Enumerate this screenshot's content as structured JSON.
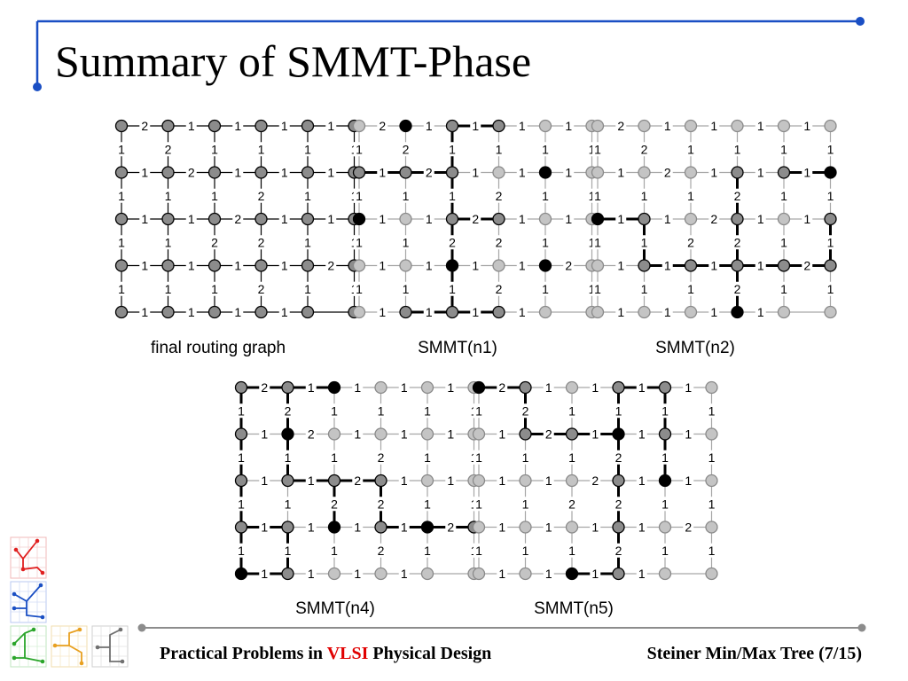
{
  "title": "Summary of SMMT-Phase",
  "colors": {
    "accent_line": "#1a4fc4",
    "footer_line": "#8c8c8c",
    "footer_accent": "#e00000",
    "node_active": "#8c8c8c",
    "node_terminal": "#000000",
    "node_faded": "#c4c4c4",
    "edge_faded": "#a6a6a6"
  },
  "footer": {
    "left_prefix": "Practical Problems in",
    "left_accent": "VLSI",
    "left_suffix": "Physical Design",
    "right": "Steiner Min/Max Tree (7/15)"
  },
  "grid": {
    "h_weights": [
      [
        2,
        1,
        1,
        1,
        1
      ],
      [
        1,
        2,
        1,
        1,
        1
      ],
      [
        1,
        1,
        2,
        1,
        1
      ],
      [
        1,
        1,
        1,
        1,
        2
      ],
      [
        1,
        1,
        1,
        1,
        null
      ]
    ],
    "v_weights": [
      [
        1,
        2,
        1,
        1,
        1,
        1
      ],
      [
        1,
        1,
        1,
        2,
        1,
        1
      ],
      [
        1,
        1,
        2,
        2,
        1,
        1
      ],
      [
        1,
        1,
        1,
        2,
        1,
        1
      ]
    ]
  },
  "panels": [
    {
      "caption": "final routing graph",
      "mode": "full",
      "terminals": [],
      "h_edges": [],
      "v_edges": []
    },
    {
      "caption": "SMMT(n1)",
      "mode": "tree",
      "terminals": [
        [
          2,
          0
        ],
        [
          0,
          1
        ],
        [
          1,
          4
        ],
        [
          3,
          2
        ],
        [
          3,
          4
        ]
      ],
      "h_edges": [
        [
          0,
          2
        ],
        [
          1,
          0
        ],
        [
          1,
          1
        ],
        [
          2,
          2
        ],
        [
          4,
          1
        ],
        [
          4,
          2
        ]
      ],
      "v_edges": [
        [
          0,
          2
        ],
        [
          1,
          2
        ],
        [
          2,
          2
        ],
        [
          3,
          2
        ]
      ]
    },
    {
      "caption": "SMMT(n2)",
      "mode": "tree",
      "terminals": [
        [
          1,
          5
        ],
        [
          2,
          0
        ],
        [
          4,
          3
        ]
      ],
      "h_edges": [
        [
          1,
          4
        ],
        [
          2,
          0
        ],
        [
          3,
          1
        ],
        [
          3,
          2
        ],
        [
          3,
          3
        ],
        [
          3,
          4
        ]
      ],
      "v_edges": [
        [
          1,
          3
        ],
        [
          2,
          3
        ],
        [
          2,
          5
        ],
        [
          2,
          1
        ],
        [
          3,
          3
        ]
      ]
    },
    {
      "caption": "SMMT(n4)",
      "mode": "tree",
      "terminals": [
        [
          0,
          2
        ],
        [
          1,
          1
        ],
        [
          3,
          2
        ],
        [
          3,
          4
        ],
        [
          4,
          0
        ]
      ],
      "h_edges": [
        [
          0,
          0
        ],
        [
          0,
          1
        ],
        [
          2,
          1
        ],
        [
          2,
          2
        ],
        [
          3,
          0
        ],
        [
          3,
          3
        ],
        [
          3,
          4
        ],
        [
          4,
          0
        ]
      ],
      "v_edges": [
        [
          0,
          0
        ],
        [
          1,
          0
        ],
        [
          2,
          0
        ],
        [
          3,
          0
        ],
        [
          0,
          1
        ],
        [
          1,
          1
        ],
        [
          2,
          2
        ],
        [
          2,
          3
        ],
        [
          3,
          1
        ]
      ]
    },
    {
      "caption": "SMMT(n5)",
      "mode": "tree",
      "terminals": [
        [
          0,
          0
        ],
        [
          1,
          3
        ],
        [
          2,
          4
        ],
        [
          4,
          2
        ]
      ],
      "h_edges": [
        [
          0,
          0
        ],
        [
          1,
          1
        ],
        [
          1,
          2
        ],
        [
          4,
          2
        ],
        [
          0,
          3
        ]
      ],
      "v_edges": [
        [
          0,
          1
        ],
        [
          0,
          3
        ],
        [
          1,
          3
        ],
        [
          2,
          3
        ],
        [
          3,
          3
        ],
        [
          0,
          4
        ],
        [
          1,
          4
        ]
      ]
    }
  ]
}
